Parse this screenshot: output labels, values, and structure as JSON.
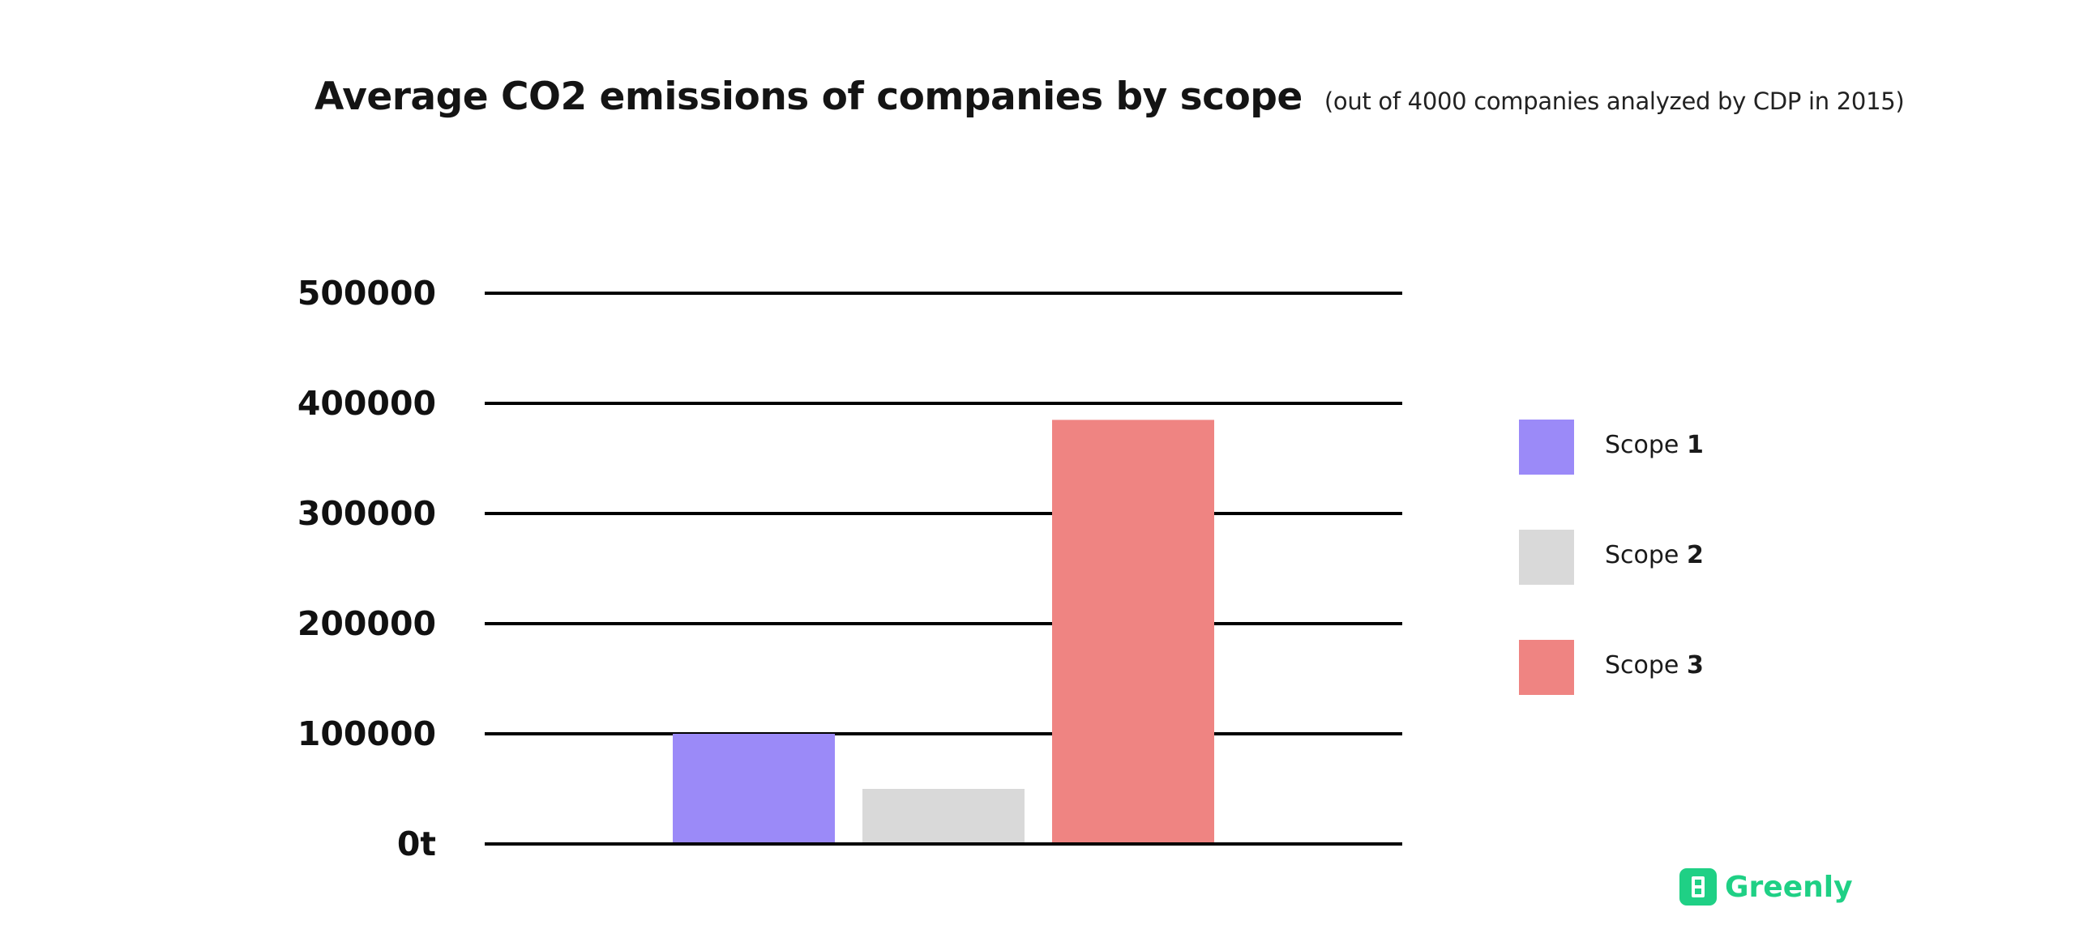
{
  "chart_data": {
    "type": "bar",
    "title": "Average CO2 emissions of companies by scope",
    "subtitle": "(out of 4000 companies analyzed by CDP in 2015)",
    "categories": [
      "Scope 1",
      "Scope 2",
      "Scope 3"
    ],
    "values": [
      100000,
      50000,
      385000
    ],
    "colors": [
      "#9b8af8",
      "#d9d9d9",
      "#ef8482"
    ],
    "y_ticks": [
      "0t",
      "100000",
      "200000",
      "300000",
      "400000",
      "500000"
    ],
    "ylim": [
      0,
      500000
    ],
    "grid": true,
    "legend_position": "right",
    "legend": [
      {
        "word": "Scope",
        "num": "1",
        "color": "#9b8af8"
      },
      {
        "word": "Scope",
        "num": "2",
        "color": "#d9d9d9"
      },
      {
        "word": "Scope",
        "num": "3",
        "color": "#ef8482"
      }
    ]
  },
  "brand": {
    "name": "Greenly",
    "icon": "greenly-logo-icon",
    "color": "#1fd085"
  }
}
